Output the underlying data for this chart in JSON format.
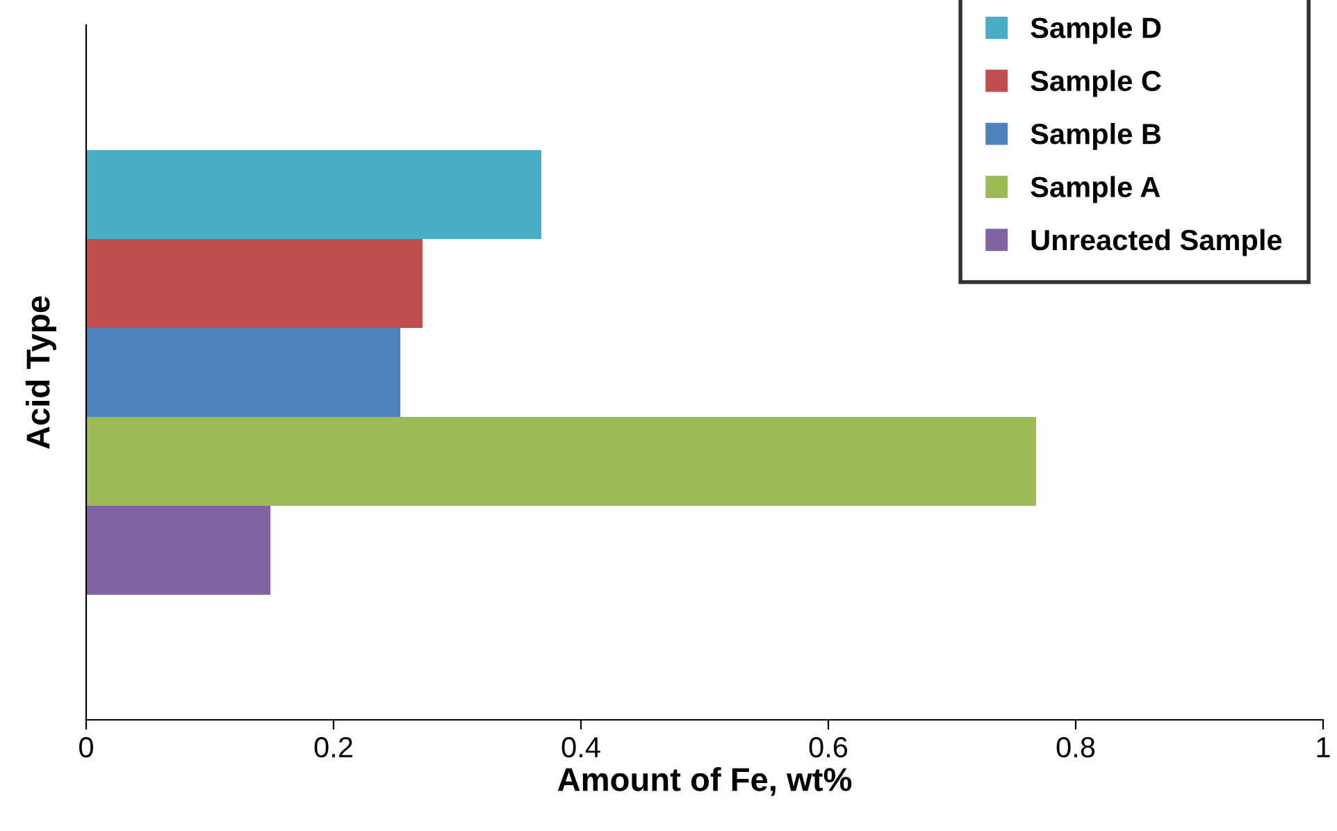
{
  "chart_data": {
    "type": "bar",
    "orientation": "horizontal",
    "xlabel": "Amount of Fe, wt%",
    "ylabel": "Acid Type",
    "categories": [
      null
    ],
    "series": [
      {
        "name": "Sample D",
        "color": "#4bacc6",
        "values": [
          0.368
        ]
      },
      {
        "name": "Sample C",
        "color": "#c0504d",
        "values": [
          0.272
        ]
      },
      {
        "name": "Sample B",
        "color": "#4f81bd",
        "values": [
          0.254
        ]
      },
      {
        "name": "Sample A",
        "color": "#9bbb59",
        "values": [
          0.768
        ]
      },
      {
        "name": "Unreacted Sample",
        "color": "#8064a2",
        "values": [
          0.149
        ]
      }
    ],
    "xlim": [
      0,
      1
    ],
    "xticks": [
      0,
      0.2,
      0.4,
      0.6,
      0.8,
      1
    ],
    "legend": "top right",
    "grid": false
  }
}
